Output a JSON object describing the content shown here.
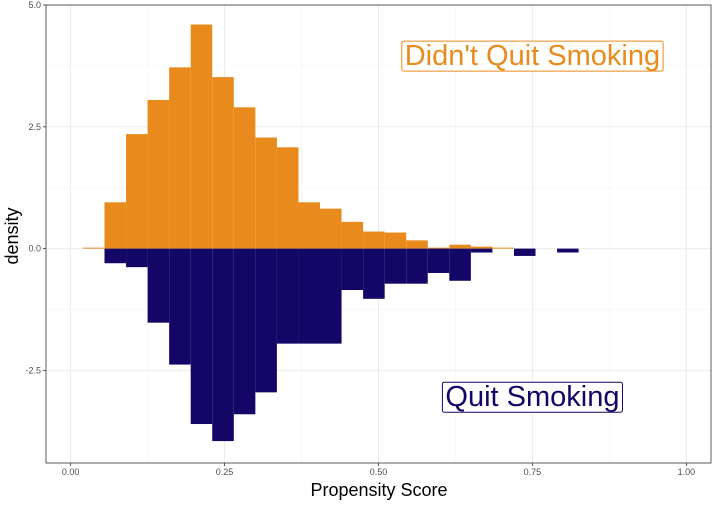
{
  "chart_data": {
    "type": "bar",
    "subtype": "mirrored-histogram",
    "xlabel": "Propensity Score",
    "ylabel": "density",
    "xlim": [
      -0.04,
      1.04
    ],
    "ylim": [
      -4.4,
      5.0
    ],
    "x_ticks": [
      0.0,
      0.25,
      0.5,
      0.75,
      1.0
    ],
    "x_tick_labels": [
      "0.00",
      "0.25",
      "0.50",
      "0.75",
      "1.00"
    ],
    "y_ticks": [
      -2.5,
      0.0,
      2.5,
      5.0
    ],
    "y_tick_labels": [
      "-2.5",
      "0.0",
      "2.5",
      "5.0"
    ],
    "grid": true,
    "bin_width": 0.035,
    "series": [
      {
        "name": "Didn't Quit Smoking",
        "direction": "up",
        "color": "#E98A1D",
        "bins": [
          {
            "x0": 0.02,
            "x1": 0.055,
            "value": 0.02
          },
          {
            "x0": 0.055,
            "x1": 0.09,
            "value": 0.95
          },
          {
            "x0": 0.09,
            "x1": 0.125,
            "value": 2.35
          },
          {
            "x0": 0.125,
            "x1": 0.16,
            "value": 3.05
          },
          {
            "x0": 0.16,
            "x1": 0.195,
            "value": 3.72
          },
          {
            "x0": 0.195,
            "x1": 0.23,
            "value": 4.6
          },
          {
            "x0": 0.23,
            "x1": 0.265,
            "value": 3.52
          },
          {
            "x0": 0.265,
            "x1": 0.3,
            "value": 2.9
          },
          {
            "x0": 0.3,
            "x1": 0.335,
            "value": 2.28
          },
          {
            "x0": 0.335,
            "x1": 0.37,
            "value": 2.08
          },
          {
            "x0": 0.37,
            "x1": 0.405,
            "value": 0.95
          },
          {
            "x0": 0.405,
            "x1": 0.44,
            "value": 0.82
          },
          {
            "x0": 0.44,
            "x1": 0.475,
            "value": 0.55
          },
          {
            "x0": 0.475,
            "x1": 0.51,
            "value": 0.35
          },
          {
            "x0": 0.51,
            "x1": 0.545,
            "value": 0.33
          },
          {
            "x0": 0.545,
            "x1": 0.58,
            "value": 0.17
          },
          {
            "x0": 0.58,
            "x1": 0.615,
            "value": 0.02
          },
          {
            "x0": 0.615,
            "x1": 0.65,
            "value": 0.08
          },
          {
            "x0": 0.65,
            "x1": 0.685,
            "value": 0.04
          },
          {
            "x0": 0.685,
            "x1": 0.72,
            "value": 0.02
          }
        ]
      },
      {
        "name": "Quit Smoking",
        "direction": "down",
        "color": "#130666",
        "bins": [
          {
            "x0": 0.055,
            "x1": 0.09,
            "value": 0.3
          },
          {
            "x0": 0.09,
            "x1": 0.125,
            "value": 0.38
          },
          {
            "x0": 0.125,
            "x1": 0.16,
            "value": 1.52
          },
          {
            "x0": 0.16,
            "x1": 0.195,
            "value": 2.38
          },
          {
            "x0": 0.195,
            "x1": 0.23,
            "value": 3.6
          },
          {
            "x0": 0.23,
            "x1": 0.265,
            "value": 3.95
          },
          {
            "x0": 0.265,
            "x1": 0.3,
            "value": 3.4
          },
          {
            "x0": 0.3,
            "x1": 0.335,
            "value": 2.95
          },
          {
            "x0": 0.335,
            "x1": 0.37,
            "value": 1.95
          },
          {
            "x0": 0.37,
            "x1": 0.405,
            "value": 1.95
          },
          {
            "x0": 0.405,
            "x1": 0.44,
            "value": 1.95
          },
          {
            "x0": 0.44,
            "x1": 0.475,
            "value": 0.85
          },
          {
            "x0": 0.475,
            "x1": 0.51,
            "value": 1.03
          },
          {
            "x0": 0.51,
            "x1": 0.545,
            "value": 0.72
          },
          {
            "x0": 0.545,
            "x1": 0.58,
            "value": 0.72
          },
          {
            "x0": 0.58,
            "x1": 0.615,
            "value": 0.5
          },
          {
            "x0": 0.615,
            "x1": 0.65,
            "value": 0.66
          },
          {
            "x0": 0.65,
            "x1": 0.685,
            "value": 0.08
          },
          {
            "x0": 0.72,
            "x1": 0.755,
            "value": 0.15
          },
          {
            "x0": 0.79,
            "x1": 0.825,
            "value": 0.08
          }
        ]
      }
    ],
    "annotations": [
      {
        "text": "Didn't Quit Smoking",
        "x": 0.75,
        "y": 3.95,
        "color": "#E98A1D"
      },
      {
        "text": "Quit Smoking",
        "x": 0.75,
        "y": -3.05,
        "color": "#130666"
      }
    ]
  }
}
